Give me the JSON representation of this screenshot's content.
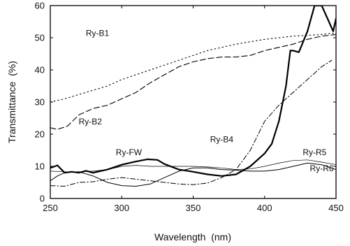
{
  "chart_data": {
    "type": "line",
    "title": "",
    "xlabel": "Wavelength  (nm)",
    "ylabel": "Transmittance  (%)",
    "xlim": [
      250,
      450
    ],
    "ylim": [
      0,
      60
    ],
    "xticks": [
      "250",
      "300",
      "350",
      "400",
      "450"
    ],
    "yticks": [
      "0",
      "10",
      "20",
      "30",
      "40",
      "50",
      "60"
    ],
    "grid": false,
    "legend": "none (series labeled directly on plot)",
    "series": [
      {
        "name": "Ry-B1",
        "style": "dotted",
        "points": [
          [
            250,
            30
          ],
          [
            260,
            31
          ],
          [
            275,
            33
          ],
          [
            290,
            35
          ],
          [
            300,
            37
          ],
          [
            320,
            40
          ],
          [
            340,
            43
          ],
          [
            360,
            46
          ],
          [
            380,
            48
          ],
          [
            400,
            49.5
          ],
          [
            420,
            50.5
          ],
          [
            440,
            51
          ],
          [
            450,
            51.5
          ]
        ]
      },
      {
        "name": "Ry-B2",
        "style": "dash",
        "points": [
          [
            250,
            22
          ],
          [
            255,
            21.5
          ],
          [
            262,
            22.5
          ],
          [
            270,
            26
          ],
          [
            280,
            28
          ],
          [
            290,
            29
          ],
          [
            300,
            31
          ],
          [
            310,
            33
          ],
          [
            320,
            36
          ],
          [
            330,
            38.5
          ],
          [
            340,
            41
          ],
          [
            350,
            42.5
          ],
          [
            360,
            43.5
          ],
          [
            370,
            44
          ],
          [
            380,
            44
          ],
          [
            390,
            44.5
          ],
          [
            400,
            46
          ],
          [
            410,
            47
          ],
          [
            420,
            48
          ],
          [
            430,
            49.5
          ],
          [
            440,
            50.5
          ],
          [
            450,
            51
          ]
        ]
      },
      {
        "name": "Ry-B4",
        "style": "dash-dot",
        "points": [
          [
            250,
            4
          ],
          [
            260,
            3.8
          ],
          [
            270,
            5
          ],
          [
            280,
            5.2
          ],
          [
            290,
            6
          ],
          [
            300,
            6.5
          ],
          [
            310,
            6
          ],
          [
            320,
            5.5
          ],
          [
            330,
            5
          ],
          [
            340,
            4.5
          ],
          [
            350,
            4.3
          ],
          [
            360,
            4.8
          ],
          [
            370,
            6.5
          ],
          [
            380,
            9
          ],
          [
            390,
            15
          ],
          [
            400,
            24
          ],
          [
            410,
            29
          ],
          [
            420,
            33
          ],
          [
            430,
            37
          ],
          [
            440,
            41
          ],
          [
            447,
            43
          ]
        ]
      },
      {
        "name": "Ry-FW",
        "style": "solid-thick",
        "points": [
          [
            250,
            9.5
          ],
          [
            255,
            10.3
          ],
          [
            260,
            8
          ],
          [
            265,
            8.3
          ],
          [
            270,
            8
          ],
          [
            275,
            8.6
          ],
          [
            280,
            8
          ],
          [
            290,
            9
          ],
          [
            300,
            10.5
          ],
          [
            310,
            11.5
          ],
          [
            318,
            12.2
          ],
          [
            325,
            12
          ],
          [
            330,
            10.7
          ],
          [
            340,
            9
          ],
          [
            350,
            8.3
          ],
          [
            360,
            7.5
          ],
          [
            370,
            7
          ],
          [
            380,
            7.5
          ],
          [
            390,
            10
          ],
          [
            400,
            14
          ],
          [
            405,
            17
          ],
          [
            410,
            24
          ],
          [
            415,
            35
          ],
          [
            418,
            46
          ],
          [
            420,
            46
          ],
          [
            424,
            45.5
          ],
          [
            430,
            52
          ],
          [
            435,
            60
          ],
          [
            440,
            60
          ],
          [
            445,
            55
          ],
          [
            448,
            52
          ],
          [
            450,
            56
          ]
        ]
      },
      {
        "name": "Ry-R5",
        "style": "solid-thin",
        "points": [
          [
            250,
            5.5
          ],
          [
            255,
            7
          ],
          [
            260,
            8
          ],
          [
            270,
            8.3
          ],
          [
            280,
            7
          ],
          [
            290,
            5
          ],
          [
            300,
            4
          ],
          [
            310,
            3.8
          ],
          [
            320,
            4.5
          ],
          [
            330,
            6.5
          ],
          [
            340,
            8.5
          ],
          [
            350,
            9.5
          ],
          [
            360,
            9.5
          ],
          [
            370,
            9
          ],
          [
            380,
            8.8
          ],
          [
            390,
            8.5
          ],
          [
            400,
            8.5
          ],
          [
            410,
            9
          ],
          [
            420,
            10
          ],
          [
            430,
            11
          ],
          [
            440,
            10.5
          ],
          [
            450,
            9
          ]
        ]
      },
      {
        "name": "Ry-R6",
        "style": "solid-hairline",
        "points": [
          [
            250,
            8.5
          ],
          [
            260,
            8.3
          ],
          [
            270,
            8.3
          ],
          [
            280,
            8.5
          ],
          [
            290,
            9
          ],
          [
            300,
            10
          ],
          [
            310,
            10.3
          ],
          [
            320,
            10
          ],
          [
            330,
            10
          ],
          [
            340,
            10
          ],
          [
            350,
            10
          ],
          [
            360,
            9.8
          ],
          [
            370,
            9.5
          ],
          [
            380,
            9
          ],
          [
            390,
            9.2
          ],
          [
            400,
            10
          ],
          [
            410,
            11
          ],
          [
            420,
            11.8
          ],
          [
            430,
            12
          ],
          [
            440,
            11.3
          ],
          [
            450,
            10.5
          ]
        ]
      }
    ],
    "annotations": [
      {
        "text": "Ry-B1",
        "x": 283,
        "y": 50.5
      },
      {
        "text": "Ry-B2",
        "x": 278,
        "y": 23
      },
      {
        "text": "Ry-B4",
        "x": 370,
        "y": 17.5
      },
      {
        "text": "Ry-FW",
        "x": 305,
        "y": 13.5
      },
      {
        "text": "Ry-R5",
        "x": 435,
        "y": 13.5
      },
      {
        "text": "Ry-R6",
        "x": 440,
        "y": 8.5
      }
    ]
  }
}
